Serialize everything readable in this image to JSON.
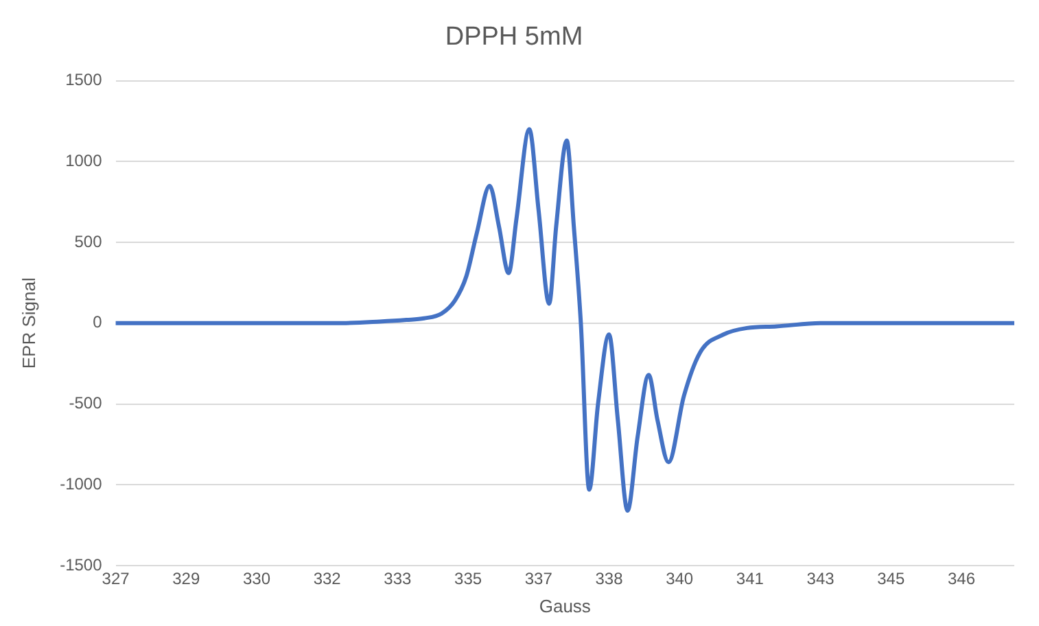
{
  "chart_data": {
    "type": "line",
    "title": "DPPH 5mM",
    "xlabel": "Gauss",
    "ylabel": "EPR Signal",
    "series": [
      {
        "color": "#4472c4",
        "x": [
          327,
          330,
          332,
          333,
          333.6,
          334,
          334.4,
          334.7,
          334.96,
          335.2,
          335.49,
          335.7,
          335.92,
          336.1,
          336.39,
          336.6,
          336.84,
          337.0,
          337.24,
          337.4,
          337.56,
          337.75,
          337.95,
          338.2,
          338.4,
          338.62,
          338.85,
          339.1,
          339.3,
          339.55,
          339.9,
          340.27,
          340.8,
          341.33,
          342,
          343,
          345,
          347.4
        ],
        "values": [
          0,
          0,
          0,
          10,
          20,
          30,
          60,
          140,
          290,
          560,
          850,
          600,
          310,
          650,
          1200,
          700,
          120,
          600,
          1130,
          600,
          0,
          -1030,
          -500,
          -70,
          -600,
          -1160,
          -700,
          -320,
          -600,
          -860,
          -450,
          -180,
          -70,
          -30,
          -20,
          0,
          0,
          0
        ]
      }
    ],
    "xlim": [
      327,
      347.4
    ],
    "xticks": [
      327,
      {
        "value": 328.6,
        "label": "329"
      },
      {
        "value": 330.2,
        "label": "330"
      },
      {
        "value": 331.8,
        "label": "332"
      },
      {
        "value": 333.4,
        "label": "333"
      },
      335,
      {
        "value": 336.6,
        "label": "337"
      },
      {
        "value": 338.2,
        "label": "338"
      },
      {
        "value": 339.8,
        "label": "340"
      },
      {
        "value": 341.4,
        "label": "341"
      },
      343,
      {
        "value": 344.6,
        "label": "345"
      },
      {
        "value": 346.2,
        "label": "346"
      }
    ],
    "ylim": [
      -1500,
      1500
    ],
    "yticks": [
      -1500,
      -1000,
      -500,
      0,
      500,
      1000,
      1500
    ],
    "grid": "y",
    "legend": false,
    "marker": "none",
    "line_style": "solid"
  }
}
